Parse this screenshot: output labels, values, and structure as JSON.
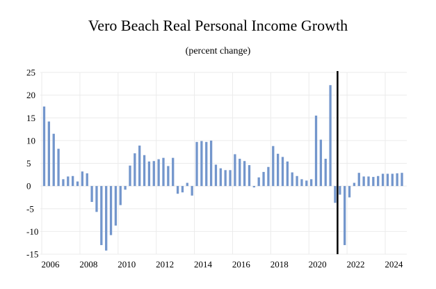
{
  "chart_data": {
    "type": "bar",
    "title": "Vero Beach Real Personal Income Growth",
    "subtitle": "(percent change)",
    "xlabel": "",
    "ylabel": "",
    "ylim": [
      -15,
      25
    ],
    "yticks": [
      25,
      20,
      15,
      10,
      5,
      0,
      -5,
      -10,
      -15
    ],
    "xticks": [
      "2006",
      "2008",
      "2010",
      "2012",
      "2014",
      "2016",
      "2018",
      "2020",
      "2022",
      "2024"
    ],
    "grid": true,
    "legend": "none",
    "bar_color": "#7396cc",
    "divider": {
      "after_quarter": "2021Q2",
      "color": "#000000"
    },
    "categories": [
      "2006Q1",
      "2006Q2",
      "2006Q3",
      "2006Q4",
      "2007Q1",
      "2007Q2",
      "2007Q3",
      "2007Q4",
      "2008Q1",
      "2008Q2",
      "2008Q3",
      "2008Q4",
      "2009Q1",
      "2009Q2",
      "2009Q3",
      "2009Q4",
      "2010Q1",
      "2010Q2",
      "2010Q3",
      "2010Q4",
      "2011Q1",
      "2011Q2",
      "2011Q3",
      "2011Q4",
      "2012Q1",
      "2012Q2",
      "2012Q3",
      "2012Q4",
      "2013Q1",
      "2013Q2",
      "2013Q3",
      "2013Q4",
      "2014Q1",
      "2014Q2",
      "2014Q3",
      "2014Q4",
      "2015Q1",
      "2015Q2",
      "2015Q3",
      "2015Q4",
      "2016Q1",
      "2016Q2",
      "2016Q3",
      "2016Q4",
      "2017Q1",
      "2017Q2",
      "2017Q3",
      "2017Q4",
      "2018Q1",
      "2018Q2",
      "2018Q3",
      "2018Q4",
      "2019Q1",
      "2019Q2",
      "2019Q3",
      "2019Q4",
      "2020Q1",
      "2020Q2",
      "2020Q3",
      "2020Q4",
      "2021Q1",
      "2021Q2",
      "2021Q3",
      "2021Q4",
      "2022Q1",
      "2022Q2",
      "2022Q3",
      "2022Q4",
      "2023Q1",
      "2023Q2",
      "2023Q3",
      "2023Q4",
      "2024Q1",
      "2024Q2",
      "2024Q3",
      "2024Q4"
    ],
    "values": [
      17.5,
      14.2,
      11.5,
      8.2,
      1.5,
      2.1,
      2.2,
      1.0,
      3.2,
      2.8,
      -3.5,
      -5.7,
      -13.0,
      -14.2,
      -10.8,
      -8.7,
      -4.2,
      -0.8,
      4.5,
      7.2,
      8.9,
      6.8,
      5.4,
      5.5,
      5.9,
      6.2,
      4.4,
      6.2,
      -1.7,
      -1.4,
      0.7,
      -2.1,
      9.7,
      9.9,
      9.7,
      10.0,
      4.7,
      3.9,
      3.5,
      3.5,
      7.0,
      6.0,
      5.5,
      4.6,
      -0.3,
      1.9,
      3.1,
      4.2,
      8.8,
      7.1,
      6.4,
      5.4,
      3.0,
      2.2,
      1.5,
      1.2,
      1.5,
      15.5,
      10.2,
      6.0,
      22.2,
      -3.7,
      -1.9,
      -13.0,
      -2.5,
      0.7,
      2.9,
      2.1,
      2.1,
      2.0,
      2.2,
      2.7,
      2.7,
      2.7,
      2.8,
      2.9
    ]
  }
}
